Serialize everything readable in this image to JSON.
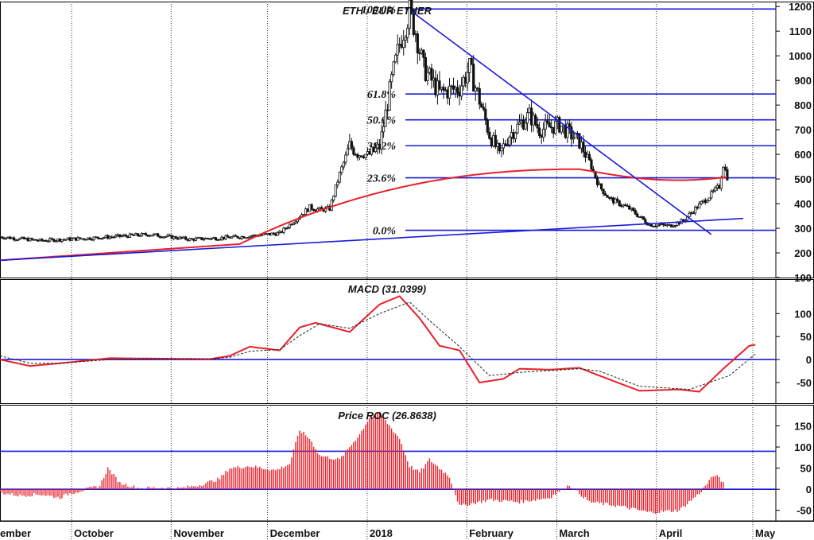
{
  "chart_data": [
    {
      "type": "candlestick",
      "title": "ETH / EUR ETHER",
      "ylim": [
        100,
        1220
      ],
      "yticks": [
        100,
        200,
        300,
        400,
        500,
        600,
        700,
        800,
        900,
        1000,
        1100,
        1200
      ],
      "fib_levels": [
        {
          "label": "100.0%",
          "value": 1190
        },
        {
          "label": "61.8%",
          "value": 845
        },
        {
          "label": "50.0%",
          "value": 740
        },
        {
          "label": "38.2%",
          "value": 635
        },
        {
          "label": "23.6%",
          "value": 505
        },
        {
          "label": "0.0%",
          "value": 292
        }
      ],
      "price_anchors": [
        [
          0,
          265
        ],
        [
          20,
          250
        ],
        [
          45,
          260
        ],
        [
          75,
          275
        ],
        [
          95,
          255
        ],
        [
          120,
          265
        ],
        [
          140,
          280
        ],
        [
          155,
          385
        ],
        [
          160,
          375
        ],
        [
          165,
          380
        ],
        [
          170,
          520
        ],
        [
          175,
          635
        ],
        [
          180,
          600
        ],
        [
          185,
          600
        ],
        [
          190,
          630
        ],
        [
          196,
          900
        ],
        [
          200,
          1050
        ],
        [
          205,
          1180
        ],
        [
          208,
          1100
        ],
        [
          212,
          950
        ],
        [
          220,
          850
        ],
        [
          230,
          870
        ],
        [
          235,
          950
        ],
        [
          240,
          820
        ],
        [
          245,
          680
        ],
        [
          250,
          600
        ],
        [
          255,
          680
        ],
        [
          260,
          720
        ],
        [
          265,
          760
        ],
        [
          270,
          700
        ],
        [
          280,
          720
        ],
        [
          290,
          650
        ],
        [
          295,
          570
        ],
        [
          300,
          470
        ],
        [
          305,
          420
        ],
        [
          315,
          380
        ],
        [
          325,
          315
        ],
        [
          335,
          310
        ],
        [
          342,
          330
        ],
        [
          348,
          380
        ],
        [
          355,
          430
        ],
        [
          360,
          470
        ],
        [
          362,
          560
        ],
        [
          364,
          510
        ]
      ],
      "moving_average": {
        "start": 170,
        "end": 500,
        "peak": 540,
        "peak_day": 290,
        "final": 495,
        "color": "#e8202a"
      },
      "trendlines": [
        {
          "name": "downtrend",
          "from": [
            206,
            1180
          ],
          "to": [
            356,
            275
          ]
        },
        {
          "name": "uptrend",
          "from": [
            0,
            170
          ],
          "to": [
            372,
            340
          ]
        }
      ]
    },
    {
      "type": "line",
      "title": "MACD (31.0399)",
      "ylim": [
        -95,
        175
      ],
      "yticks": [
        -50,
        0,
        50,
        100
      ],
      "baseline": 0,
      "series": [
        {
          "role": "macd",
          "color": "#e8202a",
          "points": [
            [
              0,
              0
            ],
            [
              15,
              -14
            ],
            [
              30,
              -8
            ],
            [
              55,
              3
            ],
            [
              80,
              2
            ],
            [
              105,
              1
            ],
            [
              115,
              8
            ],
            [
              125,
              28
            ],
            [
              140,
              20
            ],
            [
              150,
              70
            ],
            [
              158,
              80
            ],
            [
              175,
              60
            ],
            [
              190,
              120
            ],
            [
              200,
              138
            ],
            [
              210,
              90
            ],
            [
              220,
              30
            ],
            [
              230,
              20
            ],
            [
              240,
              -50
            ],
            [
              252,
              -42
            ],
            [
              260,
              -20
            ],
            [
              275,
              -22
            ],
            [
              290,
              -18
            ],
            [
              300,
              -35
            ],
            [
              320,
              -68
            ],
            [
              340,
              -65
            ],
            [
              350,
              -70
            ],
            [
              362,
              -20
            ],
            [
              375,
              30
            ],
            [
              378,
              32
            ]
          ]
        },
        {
          "role": "signal",
          "color": "#222222",
          "points": [
            [
              0,
              8
            ],
            [
              15,
              -8
            ],
            [
              30,
              -8
            ],
            [
              55,
              0
            ],
            [
              80,
              2
            ],
            [
              105,
              1
            ],
            [
              115,
              5
            ],
            [
              125,
              18
            ],
            [
              140,
              22
            ],
            [
              150,
              52
            ],
            [
              160,
              78
            ],
            [
              175,
              68
            ],
            [
              190,
              100
            ],
            [
              205,
              125
            ],
            [
              215,
              85
            ],
            [
              230,
              28
            ],
            [
              245,
              -35
            ],
            [
              260,
              -28
            ],
            [
              290,
              -20
            ],
            [
              300,
              -25
            ],
            [
              320,
              -58
            ],
            [
              345,
              -65
            ],
            [
              365,
              -35
            ],
            [
              378,
              12
            ]
          ]
        }
      ]
    },
    {
      "type": "bar",
      "title": "Price ROC (26.8638)",
      "ylim": [
        -75,
        200
      ],
      "yticks": [
        -50,
        0,
        50,
        100,
        150
      ],
      "reference_line": 90,
      "bar_color": "#e8202a",
      "roc_anchors": [
        [
          0,
          -8
        ],
        [
          10,
          -15
        ],
        [
          20,
          -12
        ],
        [
          30,
          -20
        ],
        [
          35,
          -10
        ],
        [
          50,
          8
        ],
        [
          54,
          50
        ],
        [
          60,
          15
        ],
        [
          70,
          2
        ],
        [
          80,
          4
        ],
        [
          90,
          2
        ],
        [
          100,
          10
        ],
        [
          110,
          25
        ],
        [
          115,
          50
        ],
        [
          125,
          55
        ],
        [
          138,
          45
        ],
        [
          145,
          60
        ],
        [
          150,
          140
        ],
        [
          155,
          120
        ],
        [
          160,
          80
        ],
        [
          170,
          70
        ],
        [
          175,
          100
        ],
        [
          180,
          130
        ],
        [
          185,
          170
        ],
        [
          190,
          180
        ],
        [
          195,
          150
        ],
        [
          200,
          120
        ],
        [
          205,
          55
        ],
        [
          210,
          40
        ],
        [
          215,
          70
        ],
        [
          220,
          50
        ],
        [
          225,
          30
        ],
        [
          230,
          -40
        ],
        [
          245,
          -25
        ],
        [
          260,
          -30
        ],
        [
          275,
          -20
        ],
        [
          285,
          10
        ],
        [
          295,
          -30
        ],
        [
          310,
          -40
        ],
        [
          325,
          -55
        ],
        [
          340,
          -50
        ],
        [
          350,
          -10
        ],
        [
          355,
          20
        ],
        [
          358,
          35
        ],
        [
          362,
          15
        ]
      ]
    }
  ],
  "x_axis": {
    "labels": [
      {
        "text": "ember",
        "day": -23
      },
      {
        "text": "October",
        "day": 8
      },
      {
        "text": "November",
        "day": 39
      },
      {
        "text": "December",
        "day": 69
      },
      {
        "text": "2018",
        "day": 100
      },
      {
        "text": "February",
        "day": 131
      },
      {
        "text": "March",
        "day": 159
      },
      {
        "text": "April",
        "day": 190
      },
      {
        "text": "May",
        "day": 220
      }
    ],
    "separators": [
      8,
      39,
      69,
      100,
      131,
      159,
      190,
      220
    ]
  }
}
